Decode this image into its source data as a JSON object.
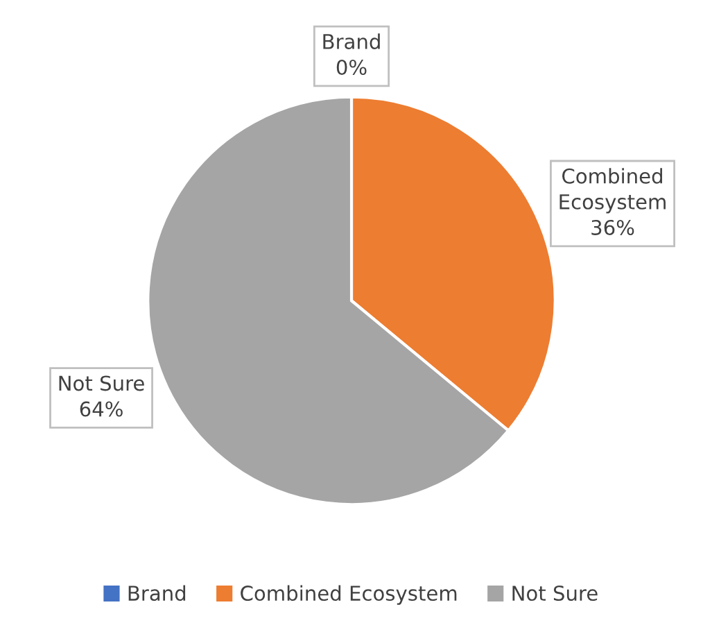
{
  "chart_data": {
    "type": "pie",
    "categories": [
      "Brand",
      "Combined Ecosystem",
      "Not Sure"
    ],
    "values": [
      0,
      36,
      64
    ],
    "colors": [
      "#4472c4",
      "#ed7d31",
      "#a5a5a5"
    ],
    "value_labels": [
      "0%",
      "36%",
      "64%"
    ],
    "legend": "bottom"
  }
}
